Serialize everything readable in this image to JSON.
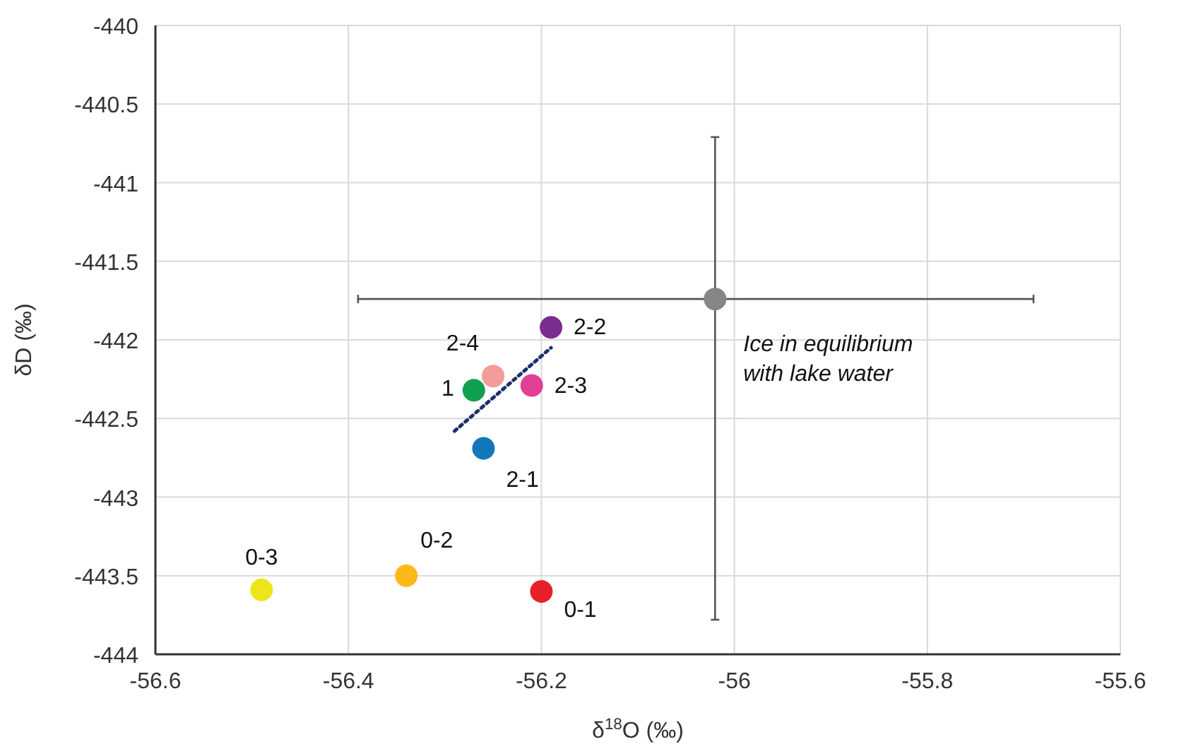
{
  "chart_data": {
    "type": "scatter",
    "xlabel": "δ$^{18}$O (‰)",
    "ylabel": "δD (‰)",
    "xlim": [
      -56.6,
      -55.6
    ],
    "xticks": [
      -56.6,
      -56.4,
      -56.2,
      -56,
      -55.8,
      -55.6
    ],
    "ylim": [
      -444,
      -440
    ],
    "yticks": [
      -444,
      -443.5,
      -443,
      -442.5,
      -442,
      -441.5,
      -441,
      -440.5,
      -440
    ],
    "grid": true,
    "series": [
      {
        "name": "2-2",
        "color": "#7b2c8f",
        "x": [
          -56.19
        ],
        "values": [
          -441.92
        ]
      },
      {
        "name": "2-4",
        "color": "#f29d9a",
        "x": [
          -56.25
        ],
        "values": [
          -442.23
        ]
      },
      {
        "name": "1",
        "color": "#0f9f4f",
        "x": [
          -56.27
        ],
        "values": [
          -442.32
        ]
      },
      {
        "name": "2-3",
        "color": "#e23f97",
        "x": [
          -56.21
        ],
        "values": [
          -442.29
        ]
      },
      {
        "name": "2-1",
        "color": "#1377bb",
        "x": [
          -56.26
        ],
        "values": [
          -442.69
        ]
      },
      {
        "name": "0-3",
        "color": "#ece51b",
        "x": [
          -56.49
        ],
        "values": [
          -443.59
        ]
      },
      {
        "name": "0-2",
        "color": "#fbb918",
        "x": [
          -56.34
        ],
        "values": [
          -443.5
        ]
      },
      {
        "name": "0-1",
        "color": "#e8202a",
        "x": [
          -56.2
        ],
        "values": [
          -443.6
        ]
      },
      {
        "color": "#868686",
        "x": [
          -56.02
        ],
        "values": [
          -441.74
        ],
        "errors": [
          [
            -443.78,
            -440.71
          ]
        ],
        "xerrors": [
          [
            -56.39,
            -55.69
          ]
        ]
      },
      {
        "type": "line",
        "color": "#1f2f6e",
        "line_style": "dotted",
        "marker": "none",
        "x": [
          -56.29,
          -56.19
        ],
        "values": [
          -442.58,
          -442.05
        ]
      }
    ],
    "annotations": [
      {
        "text": "Ice in equilibrium with lake water",
        "x": -56.02,
        "y": -441.74
      }
    ]
  }
}
